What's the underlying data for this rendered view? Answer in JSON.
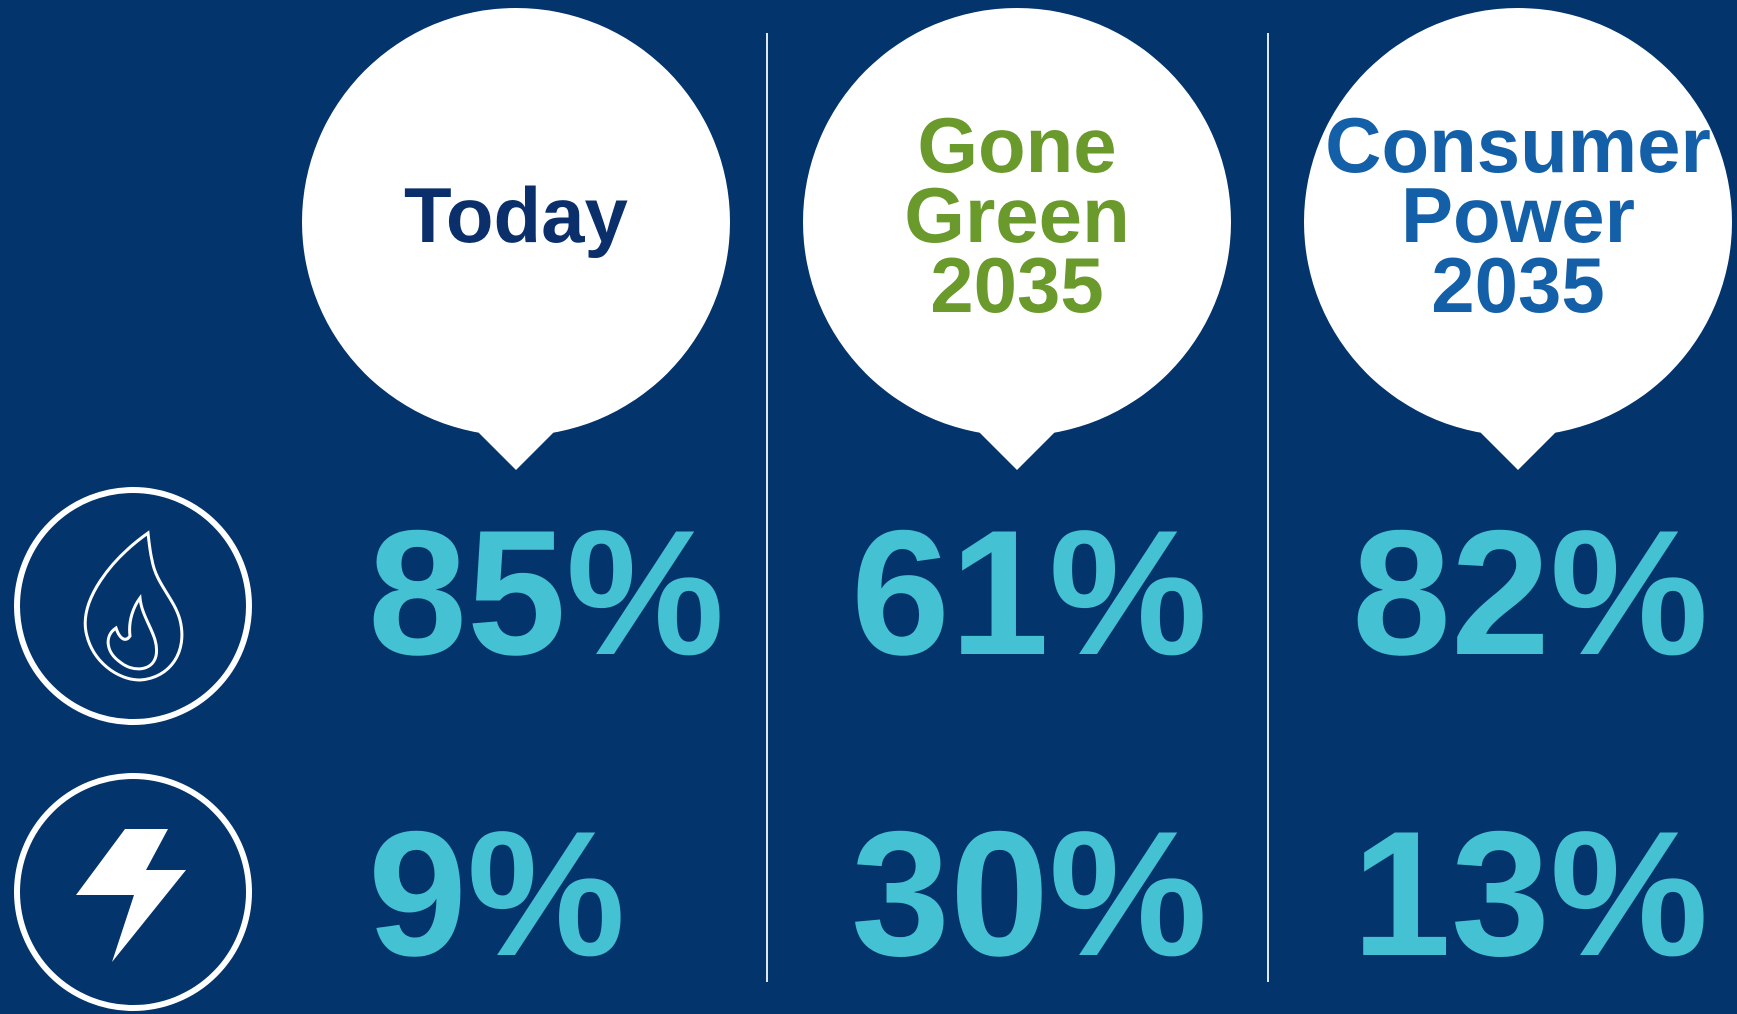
{
  "columns": [
    {
      "title": [
        "Today"
      ],
      "color": "#0a2f6b",
      "gas": "85%",
      "electricity": "9%"
    },
    {
      "title": [
        "Gone",
        "Green",
        "2035"
      ],
      "color": "#6a9a2b",
      "gas": "61%",
      "electricity": "30%"
    },
    {
      "title": [
        "Consumer",
        "Power",
        "2035"
      ],
      "color": "#1460a8",
      "gas": "82%",
      "electricity": "13%"
    }
  ]
}
